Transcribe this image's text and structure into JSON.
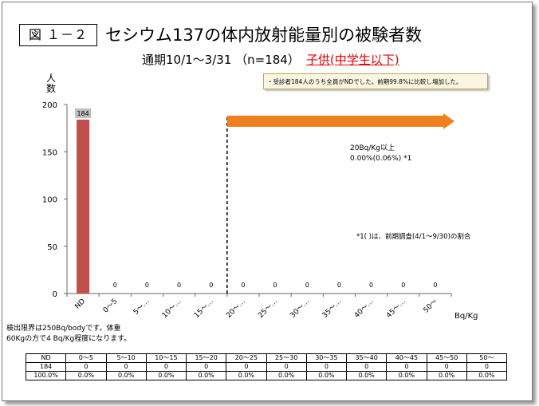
{
  "figure_label": "図 １－２",
  "title": "セシウム137の体内放射能量別の被験者数",
  "subtitle": "通期10/1～3/31 （n=184）",
  "subtitle_highlight": "子供(中学生以下)",
  "note_box": "・受診者184人のうち全員がNDでした。前期99.8%に比較し増加した。",
  "y_axis_label": "人\n数",
  "x_axis_unit": "Bq/Kg",
  "annotation_line1": "20Bq/Kg以上",
  "annotation_line2": "0.00%(0.06%) *1",
  "annotation_note": "*1(  )は、前期調査(4/1～9/30)の割合",
  "footnote_line1": "検出限界は250Bq/bodyです。体重",
  "footnote_line2": "60Kgの方で4 Bq/Kg程度になります。",
  "colors": {
    "bar": "#c0504d",
    "arrow": "#f07f1f",
    "label_bg": "#bfbfbf"
  },
  "chart_data": {
    "type": "bar",
    "categories": [
      "ND",
      "0～5",
      "5～…",
      "10～…",
      "15～…",
      "20～…",
      "25～…",
      "30～…",
      "35～…",
      "40～…",
      "45～…",
      "50～"
    ],
    "values": [
      184,
      0,
      0,
      0,
      0,
      0,
      0,
      0,
      0,
      0,
      0,
      0
    ],
    "ylim": [
      0,
      200
    ],
    "yticks": [
      0,
      50,
      100,
      150,
      200
    ],
    "ylabel": "人数",
    "xlabel": "Bq/Kg",
    "threshold_after_category": "15～…"
  },
  "table": {
    "header": [
      "ND",
      "0～5",
      "5～10",
      "10～15",
      "15～20",
      "20～25",
      "25～30",
      "30～35",
      "35～40",
      "40～45",
      "45～50",
      "50～"
    ],
    "counts": [
      "184",
      "0",
      "0",
      "0",
      "0",
      "0",
      "0",
      "0",
      "0",
      "0",
      "0",
      "0"
    ],
    "percents": [
      "100.0%",
      "0.0%",
      "0.0%",
      "0.0%",
      "0.0%",
      "0.0%",
      "0.0%",
      "0.0%",
      "0.0%",
      "0.0%",
      "0.0%",
      "0.0%"
    ]
  }
}
